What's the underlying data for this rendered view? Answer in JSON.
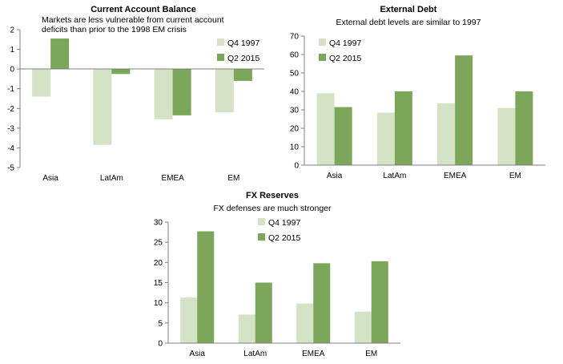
{
  "colors": {
    "q4_1997": "#d4e2c6",
    "q2_2015": "#7ca65a",
    "axis": "#808080"
  },
  "chart_data": [
    {
      "type": "bar",
      "title": "Current Account Balance",
      "subtitle_lines": [
        "Markets are less vulnerable from current account",
        "deficits than prior to the 1998 EM  crisis"
      ],
      "categories": [
        "Asia",
        "LatAm",
        "EMEA",
        "EM"
      ],
      "series": [
        {
          "name": "Q4 1997",
          "values": [
            -1.4,
            -3.85,
            -2.55,
            -2.2
          ]
        },
        {
          "name": "Q2 2015",
          "values": [
            1.55,
            -0.25,
            -2.35,
            -0.6
          ]
        }
      ],
      "ylim": [
        -5,
        2
      ],
      "yticks": [
        "2",
        "1",
        "0",
        "-1",
        "-2",
        "-3",
        "-4",
        "-5"
      ],
      "grid": false,
      "legend": "right"
    },
    {
      "type": "bar",
      "title": "External Debt",
      "subtitle_lines": [
        "External debt levels are similar to 1997"
      ],
      "categories": [
        "Asia",
        "LatAm",
        "EMEA",
        "EM"
      ],
      "series": [
        {
          "name": "Q4 1997",
          "values": [
            39,
            28.5,
            33.5,
            31
          ]
        },
        {
          "name": "Q2 2015",
          "values": [
            31.5,
            40,
            59.5,
            40
          ]
        }
      ],
      "ylim": [
        0,
        70
      ],
      "yticks": [
        "0",
        "10",
        "20",
        "30",
        "40",
        "50",
        "60",
        "70"
      ],
      "grid": false,
      "legend": "top-left"
    },
    {
      "type": "bar",
      "title": "FX Reserves",
      "subtitle_lines": [
        "FX defenses are much stronger"
      ],
      "categories": [
        "Asia",
        "LatAm",
        "EMEA",
        "EM"
      ],
      "series": [
        {
          "name": "Q4 1997",
          "values": [
            11.3,
            7.1,
            9.8,
            7.8
          ]
        },
        {
          "name": "Q2 2015",
          "values": [
            27.7,
            15,
            19.8,
            20.3
          ]
        }
      ],
      "ylim": [
        0,
        30
      ],
      "yticks": [
        "0",
        "5",
        "10",
        "15",
        "20",
        "25",
        "30"
      ],
      "grid": false,
      "legend": "top-left"
    }
  ]
}
